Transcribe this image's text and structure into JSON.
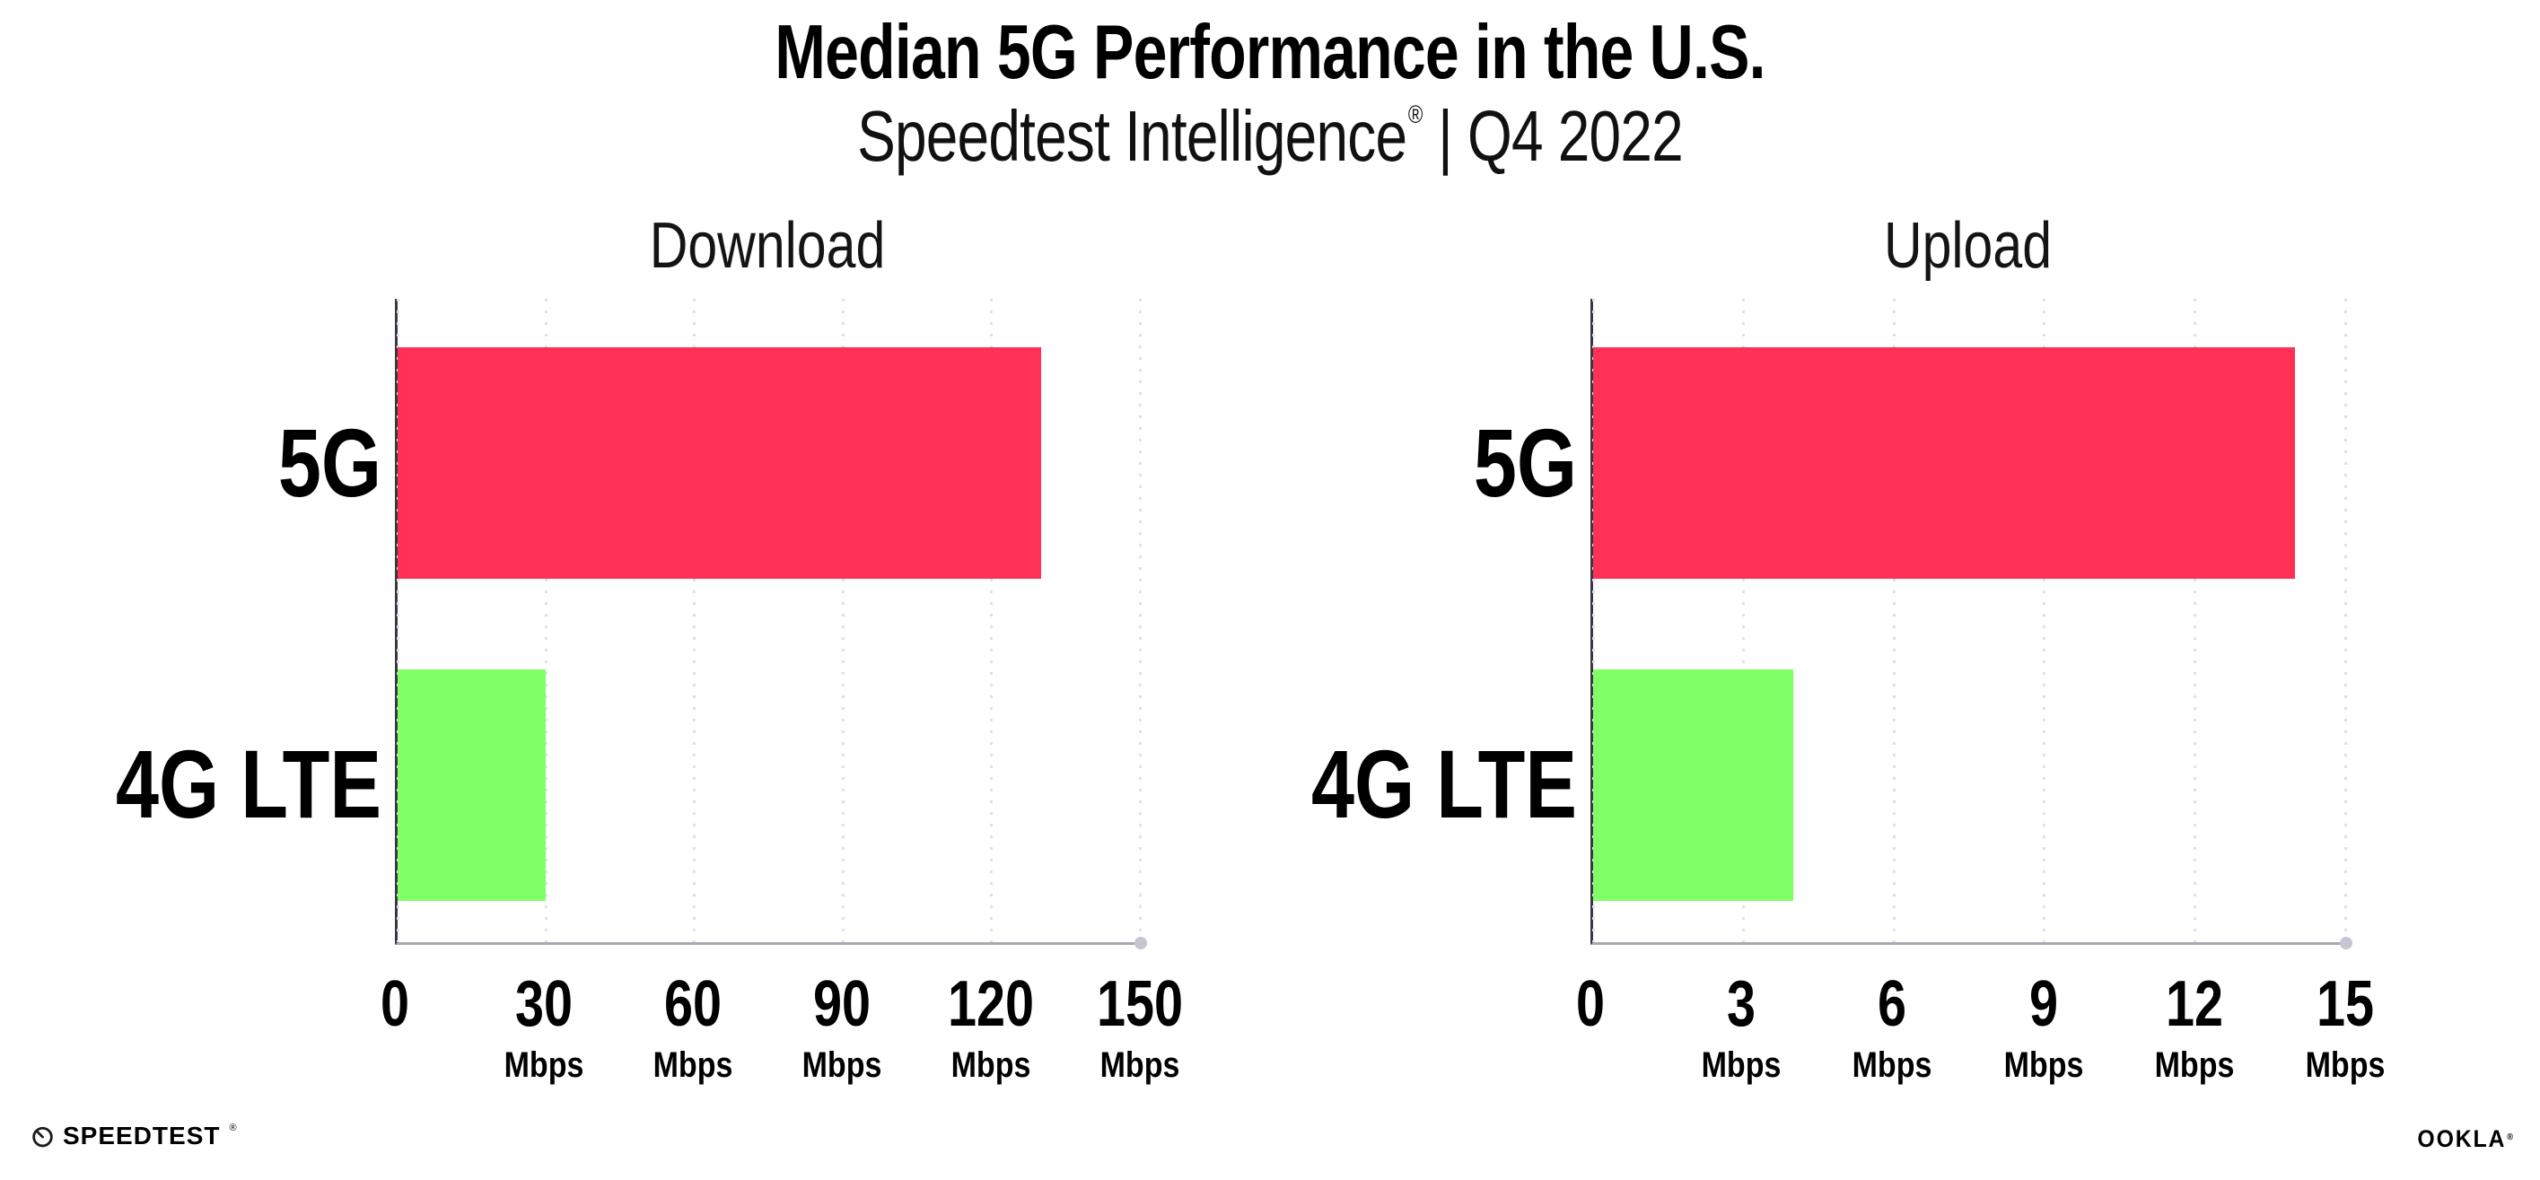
{
  "header": {
    "title": "Median 5G Performance in the U.S.",
    "subtitle_brand": "Speedtest Intelligence",
    "subtitle_reg": "®",
    "subtitle_period": "| Q4 2022"
  },
  "footer": {
    "speedtest_label": "SPEEDTEST",
    "speedtest_reg": "®",
    "ookla_label": "OOKLA",
    "ookla_reg": "®"
  },
  "colors": {
    "bar_5g": "#ff3154",
    "bar_4g_lte": "#80ff66",
    "gridline": "#dfdfed",
    "x_axis": "#a8a8b0",
    "y_axis": "#39383f",
    "text": "#000000"
  },
  "chart_data": [
    {
      "type": "bar",
      "orientation": "horizontal",
      "title": "Download",
      "categories": [
        "5G",
        "4G LTE"
      ],
      "values": [
        130,
        30
      ],
      "unit": "Mbps",
      "xlabel": "",
      "ylabel": "",
      "xlim": [
        0,
        150
      ],
      "xticks": [
        0,
        30,
        60,
        90,
        120,
        150
      ],
      "bar_colors": [
        "#ff3154",
        "#80ff66"
      ],
      "grid": "vertical-dotted",
      "legend": "none"
    },
    {
      "type": "bar",
      "orientation": "horizontal",
      "title": "Upload",
      "categories": [
        "5G",
        "4G LTE"
      ],
      "values": [
        14,
        4
      ],
      "unit": "Mbps",
      "xlabel": "",
      "ylabel": "",
      "xlim": [
        0,
        15
      ],
      "xticks": [
        0,
        3,
        6,
        9,
        12,
        15
      ],
      "bar_colors": [
        "#ff3154",
        "#80ff66"
      ],
      "grid": "vertical-dotted",
      "legend": "none"
    }
  ]
}
